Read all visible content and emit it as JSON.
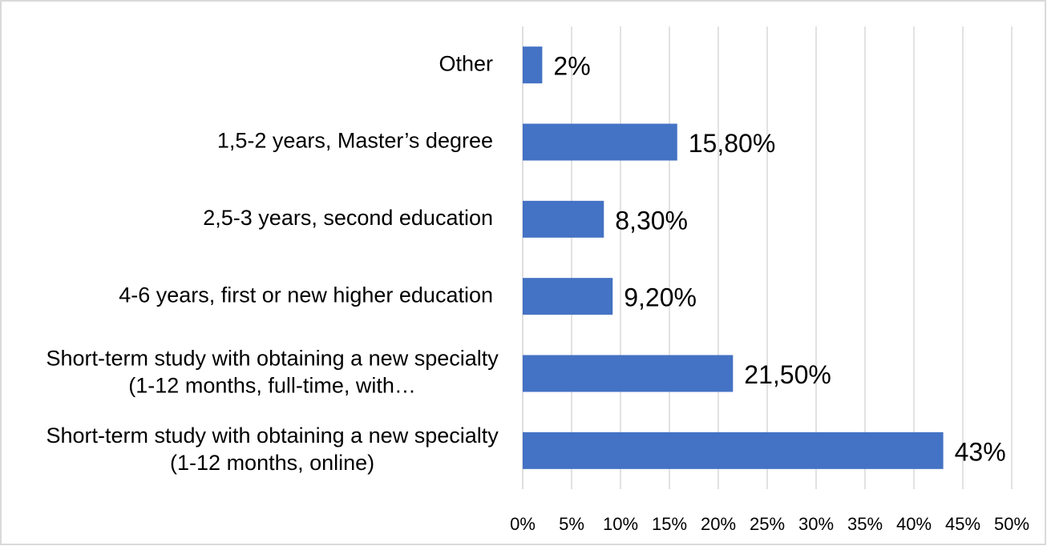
{
  "chart_data": {
    "type": "bar",
    "orientation": "horizontal",
    "categories": [
      "Other",
      "1,5-2 years, Master’s degree",
      "2,5-3 years, second education",
      "4-6 years, first  or   new higher education",
      "Short-term study with obtaining a new specialty (1-12 months, full-time, with…",
      "Short-term study with obtaining a new specialty (1-12 months, online)"
    ],
    "values": [
      2,
      15.8,
      8.3,
      9.2,
      21.5,
      43
    ],
    "value_labels": [
      "2%",
      "15,80%",
      "8,30%",
      "9,20%",
      "21,50%",
      "43%"
    ],
    "color": "#4472c4",
    "xlim": [
      0,
      50
    ],
    "xticks": [
      {
        "value": 0,
        "label": "0%"
      },
      {
        "value": 5,
        "label": "5%"
      },
      {
        "value": 10,
        "label": "10%"
      },
      {
        "value": 15,
        "label": "15%"
      },
      {
        "value": 20,
        "label": "20%"
      },
      {
        "value": 25,
        "label": "25%"
      },
      {
        "value": 30,
        "label": "30%"
      },
      {
        "value": 35,
        "label": "35%"
      },
      {
        "value": 40,
        "label": "40%"
      },
      {
        "value": 45,
        "label": "45%"
      },
      {
        "value": 50,
        "label": "50%"
      }
    ],
    "grid": true
  }
}
